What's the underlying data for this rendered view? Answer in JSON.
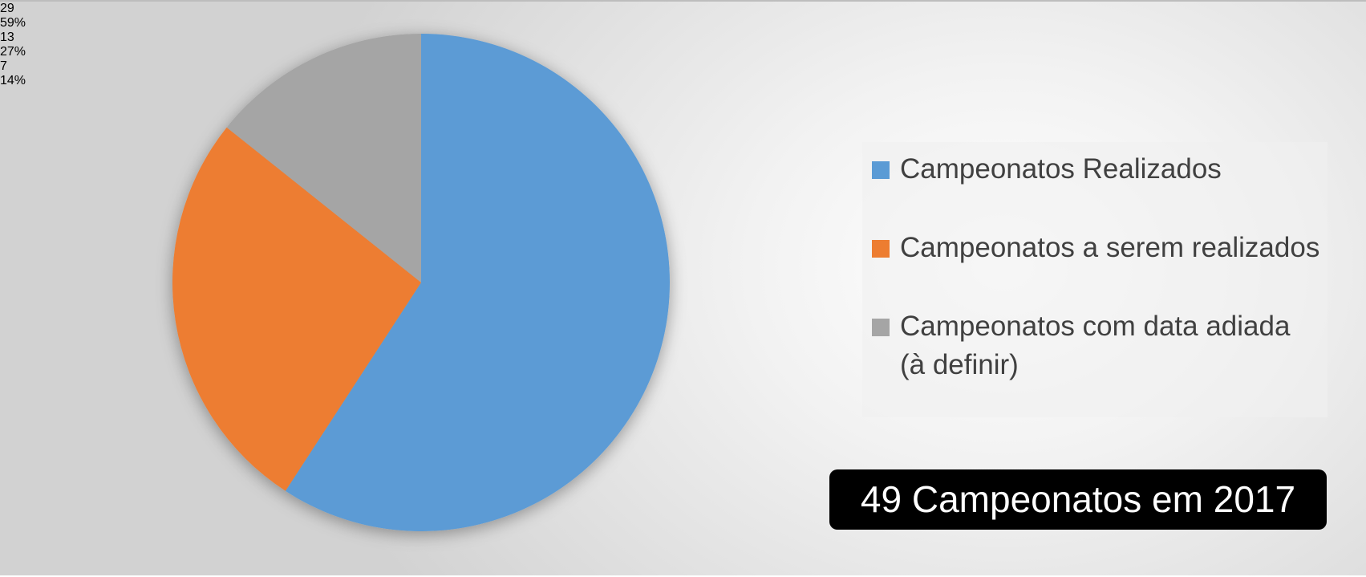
{
  "chart_data": {
    "type": "pie",
    "categories": [
      "Campeonatos Realizados",
      "Campeonatos a serem realizados",
      "Campeonatos com data adiada (à definir)"
    ],
    "values": [
      29,
      13,
      7
    ],
    "percentages": [
      59,
      27,
      14
    ],
    "percentage_labels": [
      "59%",
      "27%",
      "14%"
    ],
    "colors": [
      "#5b9bd5",
      "#ed7d31",
      "#a5a5a5"
    ],
    "legend": "right",
    "annotation": "49 Campeonatos em 2017"
  }
}
